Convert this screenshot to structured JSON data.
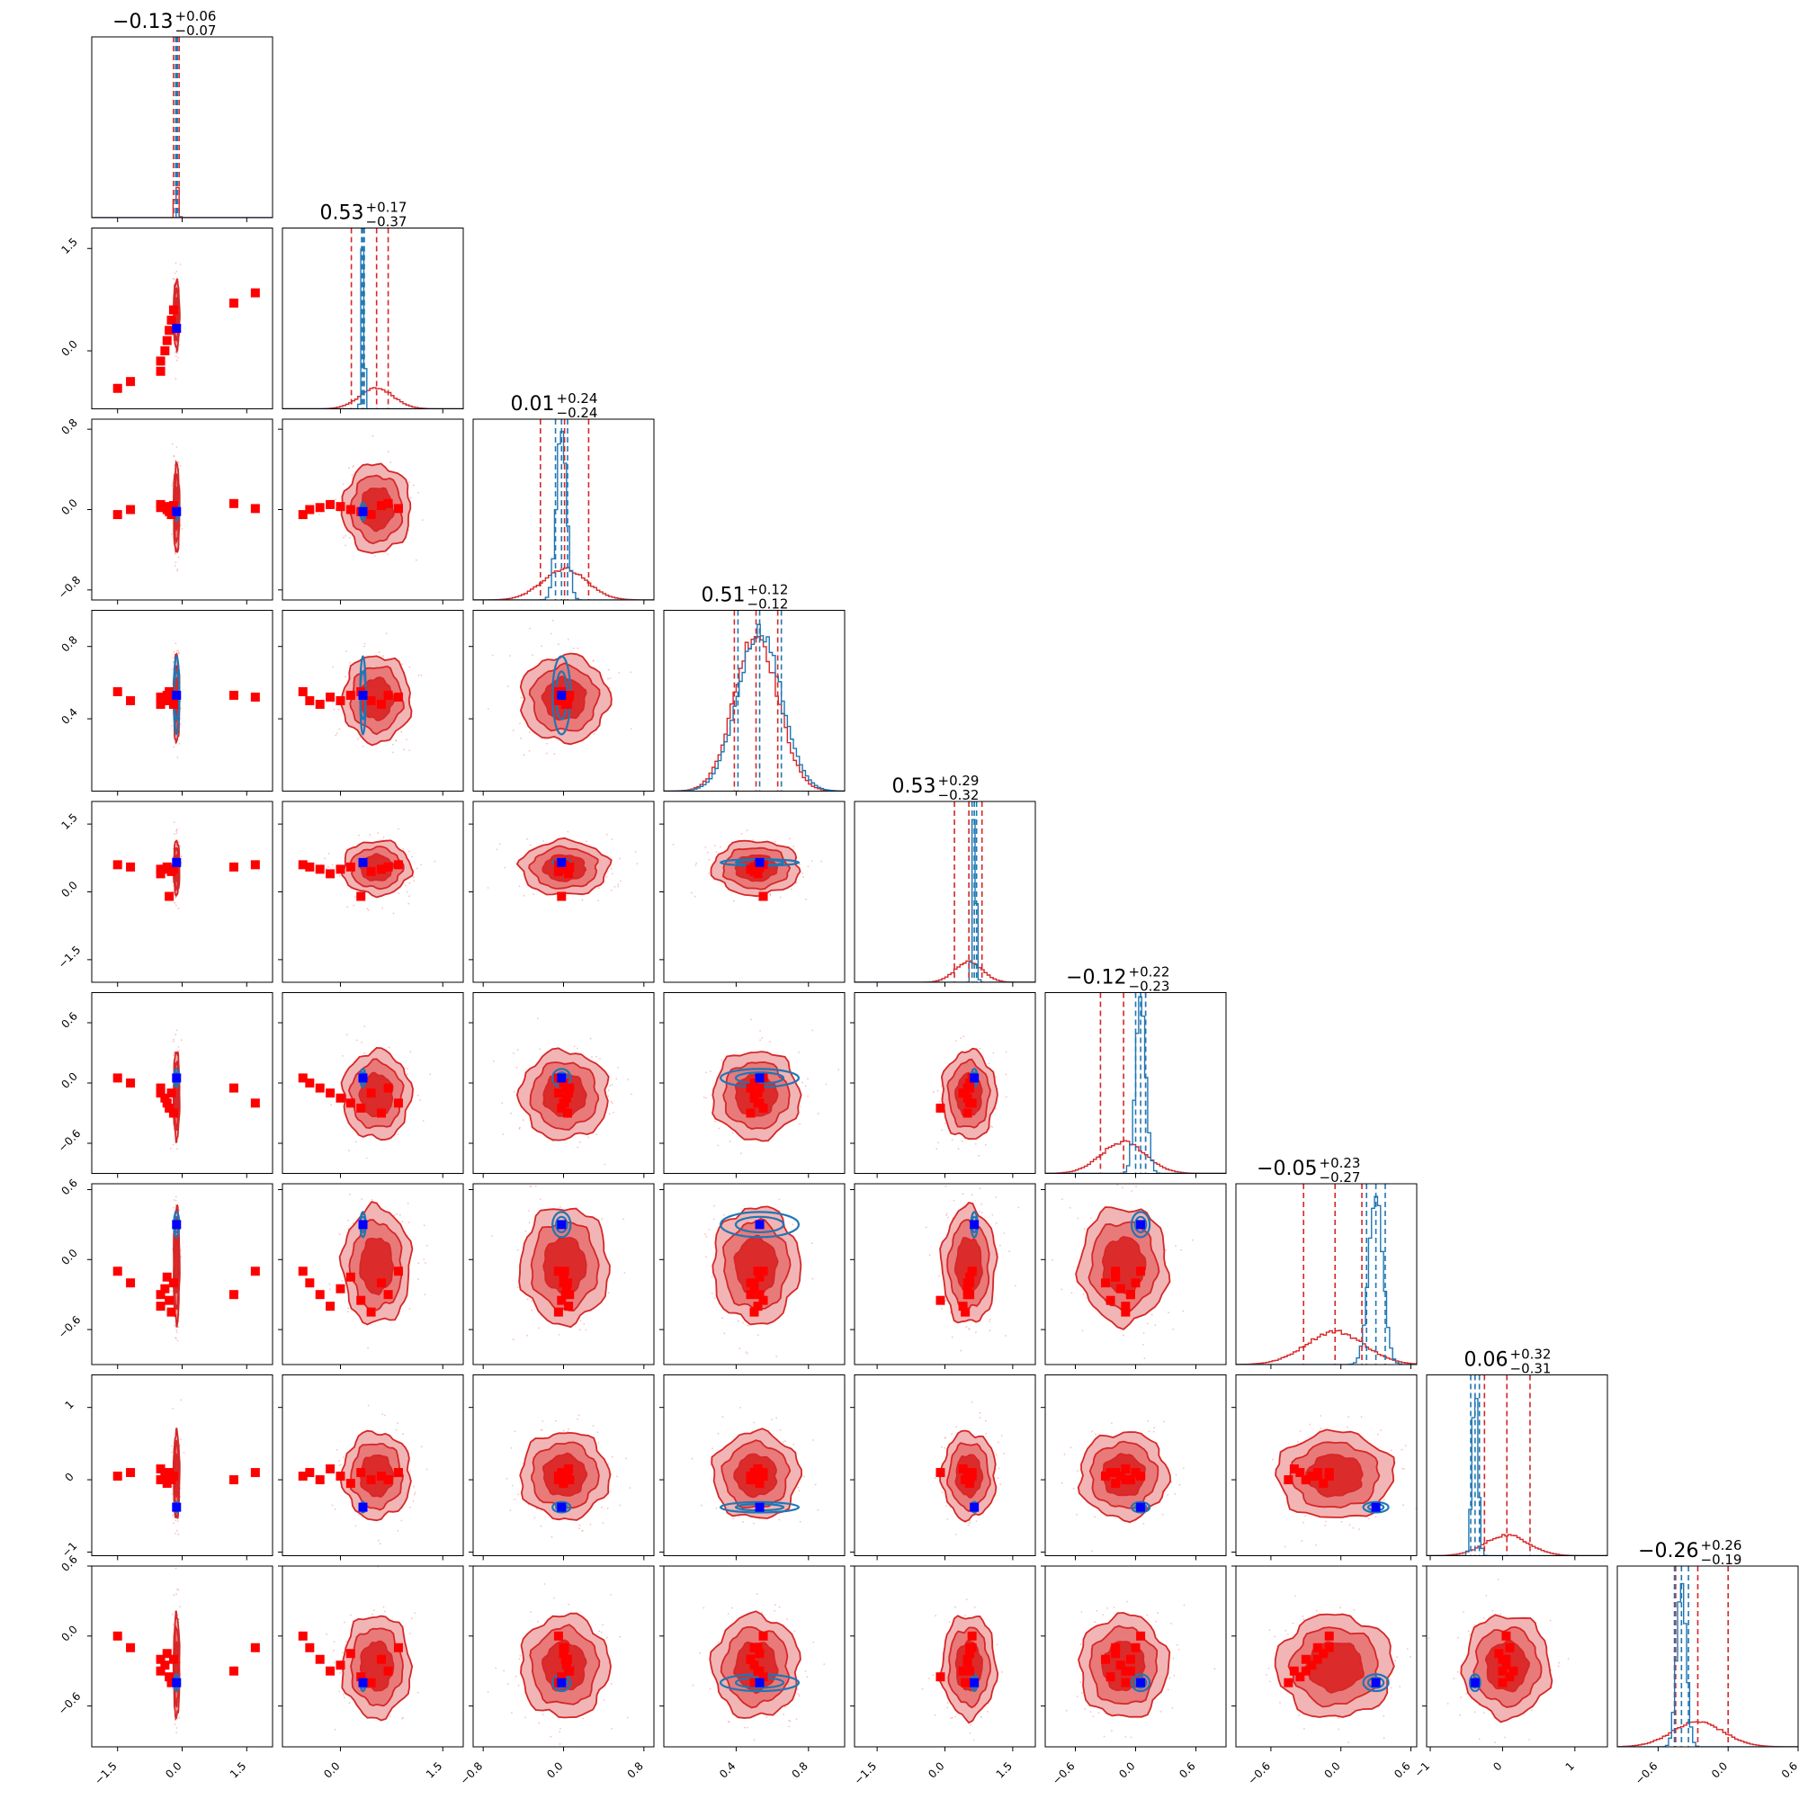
{
  "chart_data": {
    "type": "corner",
    "n_params": 9,
    "grid": false,
    "legend": "none",
    "colors": {
      "primary": "#d62728",
      "primary_fill_outer": "#f2b5b5",
      "primary_fill_mid": "#e97a7a",
      "primary_fill_inner": "#dc2b2b",
      "secondary": "#1f77b4",
      "marker_red": "#ff0000",
      "marker_blue": "#0000ff"
    },
    "titles": [
      {
        "median": "−0.13",
        "plus": "+0.06",
        "minus": "−0.07"
      },
      {
        "median": "0.53",
        "plus": "+0.17",
        "minus": "−0.37"
      },
      {
        "median": "0.01",
        "plus": "+0.24",
        "minus": "−0.24"
      },
      {
        "median": "0.51",
        "plus": "+0.12",
        "minus": "−0.12"
      },
      {
        "median": "0.53",
        "plus": "+0.29",
        "minus": "−0.32"
      },
      {
        "median": "−0.12",
        "plus": "+0.22",
        "minus": "−0.23"
      },
      {
        "median": "−0.05",
        "plus": "+0.23",
        "minus": "−0.27"
      },
      {
        "median": "0.06",
        "plus": "+0.32",
        "minus": "−0.31"
      },
      {
        "median": "−0.26",
        "plus": "+0.26",
        "minus": "−0.19"
      }
    ],
    "params": [
      {
        "range": [
          -2.1,
          2.1
        ],
        "ticks": [
          -1.5,
          0.0,
          1.5
        ],
        "tick_labels": [
          "−1.5",
          "0.0",
          "1.5"
        ],
        "primary": {
          "mean": -0.13,
          "sd": 0.035
        },
        "secondary": {
          "mean": -0.13,
          "sd": 0.01
        },
        "quantiles_primary": [
          -0.2,
          -0.13,
          -0.07
        ],
        "quantiles_secondary": [
          -0.15,
          -0.13,
          -0.11
        ],
        "truth_blue": -0.13,
        "points_red": [
          -1.5,
          -1.2,
          -0.5,
          -0.5,
          -0.4,
          -0.35,
          -0.3,
          -0.25,
          -0.2,
          1.2,
          1.7
        ]
      },
      {
        "range": [
          -0.85,
          1.8
        ],
        "ticks": [
          0.0,
          1.5
        ],
        "tick_labels": [
          "0.0",
          "1.5"
        ],
        "primary": {
          "mean": 0.53,
          "sd": 0.25
        },
        "secondary": {
          "mean": 0.33,
          "sd": 0.02
        },
        "quantiles_primary": [
          0.16,
          0.53,
          0.7
        ],
        "quantiles_secondary": [
          0.31,
          0.33,
          0.35
        ],
        "truth_blue": 0.33,
        "points_red": [
          -0.55,
          -0.45,
          -0.3,
          -0.15,
          0.0,
          0.15,
          0.3,
          0.45,
          0.6,
          0.7,
          0.85
        ]
      },
      {
        "range": [
          -0.9,
          0.9
        ],
        "ticks": [
          -0.8,
          0.0,
          0.8
        ],
        "tick_labels": [
          "−0.8",
          "0.0",
          "0.8"
        ],
        "primary": {
          "mean": 0.01,
          "sd": 0.22
        },
        "secondary": {
          "mean": -0.02,
          "sd": 0.05
        },
        "quantiles_primary": [
          -0.23,
          0.01,
          0.25
        ],
        "quantiles_secondary": [
          -0.08,
          -0.02,
          0.04
        ],
        "truth_blue": -0.02,
        "points_red": [
          -0.05,
          0.0,
          0.02,
          0.05,
          0.03,
          0.0,
          -0.02,
          -0.05,
          0.04,
          0.06,
          0.01
        ]
      },
      {
        "range": [
          0.0,
          1.0
        ],
        "ticks": [
          0.4,
          0.8
        ],
        "tick_labels": [
          "0.4",
          "0.8"
        ],
        "primary": {
          "mean": 0.51,
          "sd": 0.12
        },
        "secondary": {
          "mean": 0.53,
          "sd": 0.12
        },
        "quantiles_primary": [
          0.39,
          0.51,
          0.63
        ],
        "quantiles_secondary": [
          0.41,
          0.53,
          0.65
        ],
        "truth_blue": 0.53,
        "points_red": [
          0.55,
          0.5,
          0.48,
          0.52,
          0.5,
          0.53,
          0.55,
          0.5,
          0.48,
          0.53,
          0.52
        ]
      },
      {
        "range": [
          -2.0,
          2.0
        ],
        "ticks": [
          -1.5,
          0.0,
          1.5
        ],
        "tick_labels": [
          "−1.5",
          "0.0",
          "1.5"
        ],
        "primary": {
          "mean": 0.53,
          "sd": 0.3
        },
        "secondary": {
          "mean": 0.65,
          "sd": 0.04
        },
        "quantiles_primary": [
          0.21,
          0.53,
          0.82
        ],
        "quantiles_secondary": [
          0.6,
          0.65,
          0.7
        ],
        "truth_blue": 0.65,
        "points_red": [
          0.6,
          0.55,
          0.5,
          0.4,
          0.5,
          0.55,
          -0.1,
          0.45,
          0.5,
          0.55,
          0.6
        ]
      },
      {
        "range": [
          -0.9,
          0.9
        ],
        "ticks": [
          -0.6,
          0.0,
          0.6
        ],
        "tick_labels": [
          "−0.6",
          "0.0",
          "0.6"
        ],
        "primary": {
          "mean": -0.12,
          "sd": 0.22
        },
        "secondary": {
          "mean": 0.05,
          "sd": 0.05
        },
        "quantiles_primary": [
          -0.35,
          -0.12,
          0.1
        ],
        "quantiles_secondary": [
          0.0,
          0.05,
          0.1
        ],
        "truth_blue": 0.05,
        "points_red": [
          0.05,
          0.0,
          -0.05,
          -0.1,
          -0.15,
          -0.2,
          -0.25,
          -0.1,
          -0.3,
          -0.05,
          -0.2
        ]
      },
      {
        "range": [
          -0.9,
          0.65
        ],
        "ticks": [
          -0.6,
          0.0,
          0.6
        ],
        "tick_labels": [
          "−0.6",
          "0.0",
          "0.6"
        ],
        "primary": {
          "mean": -0.05,
          "sd": 0.25
        },
        "secondary": {
          "mean": 0.3,
          "sd": 0.06
        },
        "quantiles_primary": [
          -0.32,
          -0.05,
          0.18
        ],
        "quantiles_secondary": [
          0.22,
          0.3,
          0.38
        ],
        "truth_blue": 0.3,
        "points_red": [
          -0.1,
          -0.2,
          -0.3,
          -0.4,
          -0.25,
          -0.15,
          -0.35,
          -0.45,
          -0.2,
          -0.3,
          -0.1
        ]
      },
      {
        "range": [
          -1.05,
          1.45
        ],
        "ticks": [
          -1,
          0,
          1
        ],
        "tick_labels": [
          "−1",
          "0",
          "1"
        ],
        "primary": {
          "mean": 0.06,
          "sd": 0.3
        },
        "secondary": {
          "mean": -0.38,
          "sd": 0.04
        },
        "quantiles_primary": [
          -0.25,
          0.06,
          0.38
        ],
        "quantiles_secondary": [
          -0.44,
          -0.38,
          -0.32
        ],
        "truth_blue": -0.38,
        "points_red": [
          0.05,
          0.1,
          0.0,
          0.15,
          0.05,
          -0.05,
          0.1,
          0.0,
          0.05,
          0.0,
          0.1
        ]
      },
      {
        "range": [
          -0.95,
          0.6
        ],
        "ticks": [
          -0.6,
          0.0,
          0.6
        ],
        "tick_labels": [
          "−0.6",
          "0.0",
          "0.6"
        ],
        "primary": {
          "mean": -0.26,
          "sd": 0.22
        },
        "secondary": {
          "mean": -0.4,
          "sd": 0.04
        },
        "quantiles_primary": [
          -0.45,
          -0.26,
          0.0
        ],
        "quantiles_secondary": [
          -0.46,
          -0.4,
          -0.34
        ],
        "truth_blue": -0.4,
        "points_red": [
          0.0,
          -0.1,
          -0.2,
          -0.3,
          -0.25,
          -0.15,
          -0.35,
          -0.4,
          -0.2,
          -0.3,
          -0.1
        ]
      }
    ]
  }
}
